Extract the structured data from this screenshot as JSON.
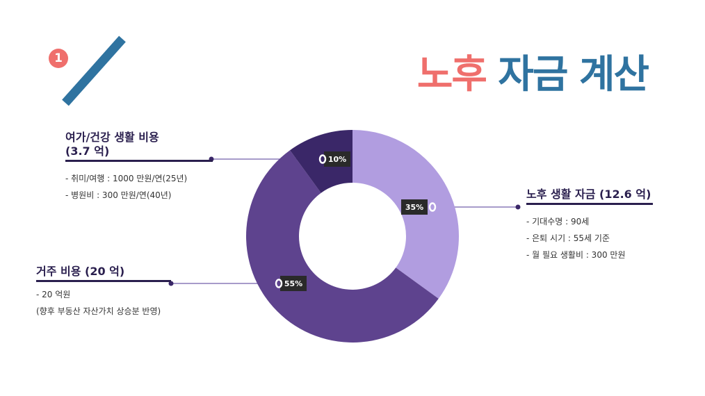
{
  "badge": "1",
  "title": {
    "part1": "노후",
    "part2": "자금 계산"
  },
  "chart_data": {
    "type": "pie",
    "categories": [
      "노후 생활 자금",
      "거주 비용",
      "여가/건강 생활 비용"
    ],
    "values": [
      35,
      55,
      10
    ],
    "labels": [
      "35%",
      "55%",
      "10%"
    ],
    "colors": [
      "#b19de0",
      "#5e438e",
      "#3a2768"
    ]
  },
  "blocks": {
    "living": {
      "title": "노후 생활 자금 (12.6 억)",
      "items": [
        "- 기대수명 : 90세",
        "- 은퇴 시기 : 55세 기준",
        "- 월 필요 생활비 : 300 만원"
      ]
    },
    "housing": {
      "title": "거주 비용 (20 억)",
      "items": [
        "- 20 억원",
        "  (향후 부동산 자산가치 상승분 반영)"
      ]
    },
    "leisure": {
      "title_line1": "여가/건강 생활 비용",
      "title_line2": "(3.7 억)",
      "items": [
        "- 취미/여행 : 1000 만원/연(25년)",
        "- 병원비 : 300 만원/연(40년)"
      ]
    }
  }
}
